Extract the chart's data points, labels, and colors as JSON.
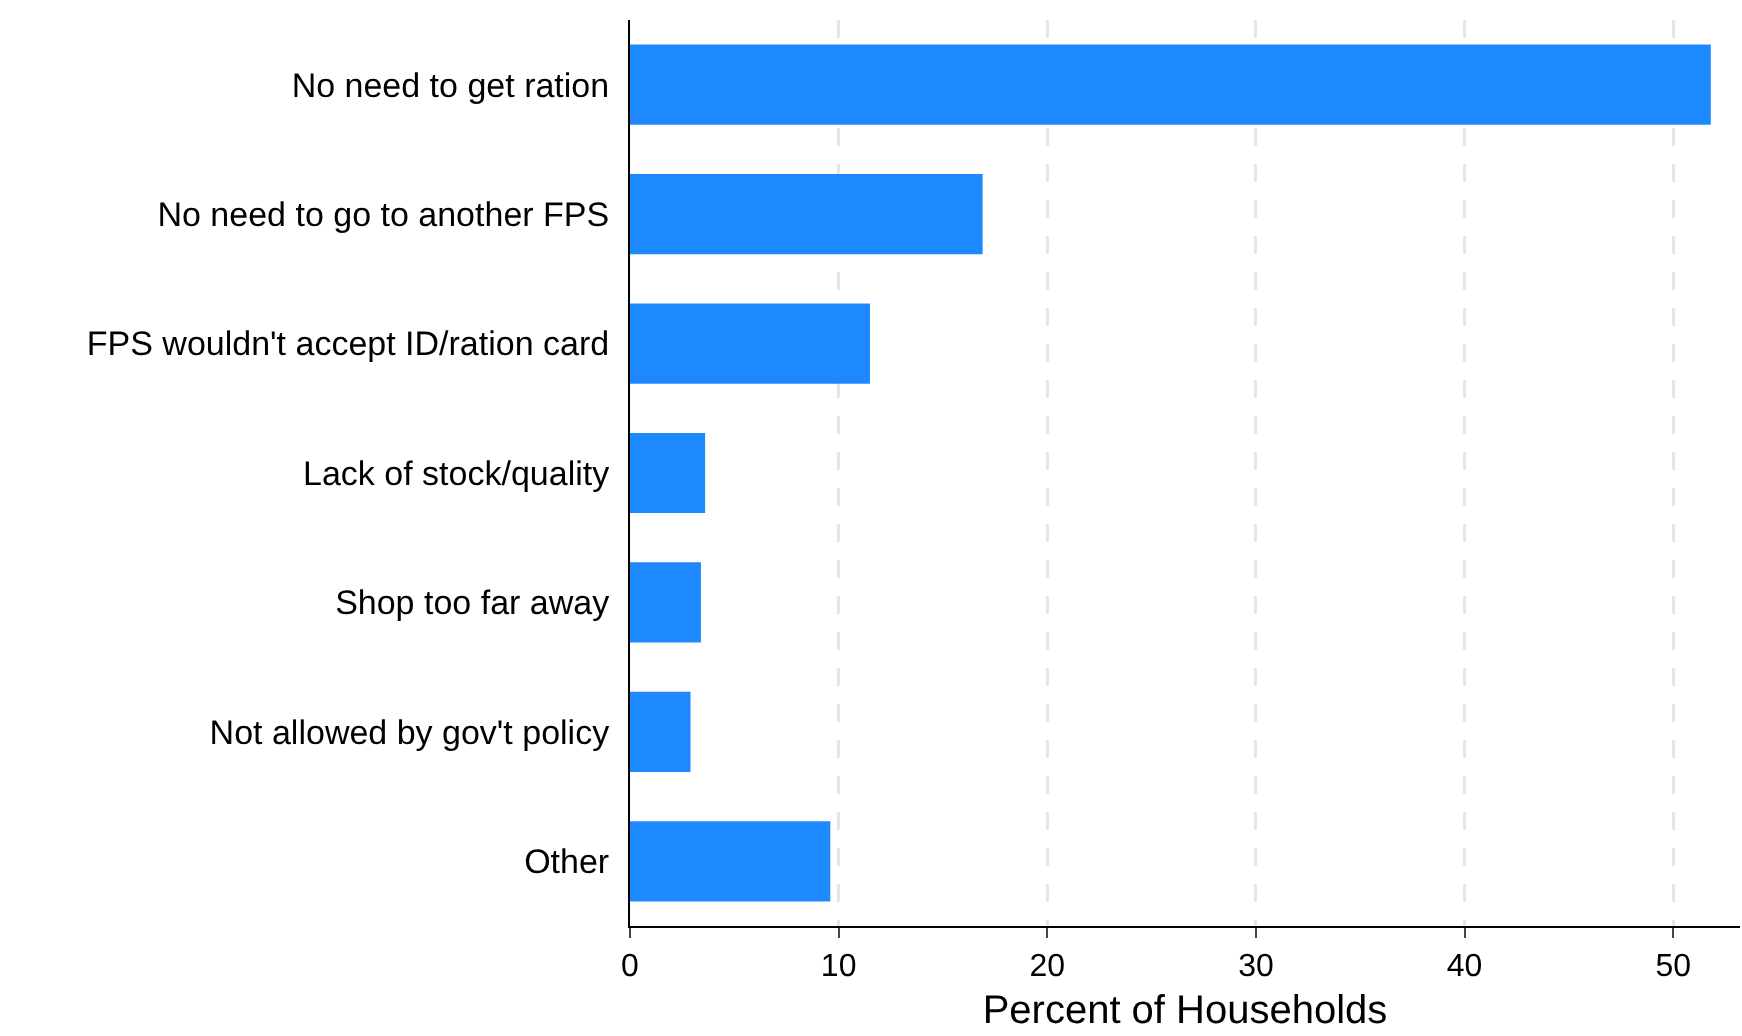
{
  "chart_data": {
    "type": "bar",
    "orientation": "horizontal",
    "xlabel": "Percent of Households",
    "categories": [
      "No need to get ration",
      "No need to go to another FPS",
      "FPS wouldn't accept ID/ration card",
      "Lack of stock/quality",
      "Shop too far away",
      "Not allowed by gov't policy",
      "Other"
    ],
    "values": [
      51.8,
      16.9,
      11.5,
      3.6,
      3.4,
      2.9,
      9.6
    ],
    "color": "#1e88ff",
    "xlim": [
      0,
      53.2
    ],
    "xticks": [
      0,
      10,
      20,
      30,
      40,
      50
    ],
    "grid": "x"
  }
}
